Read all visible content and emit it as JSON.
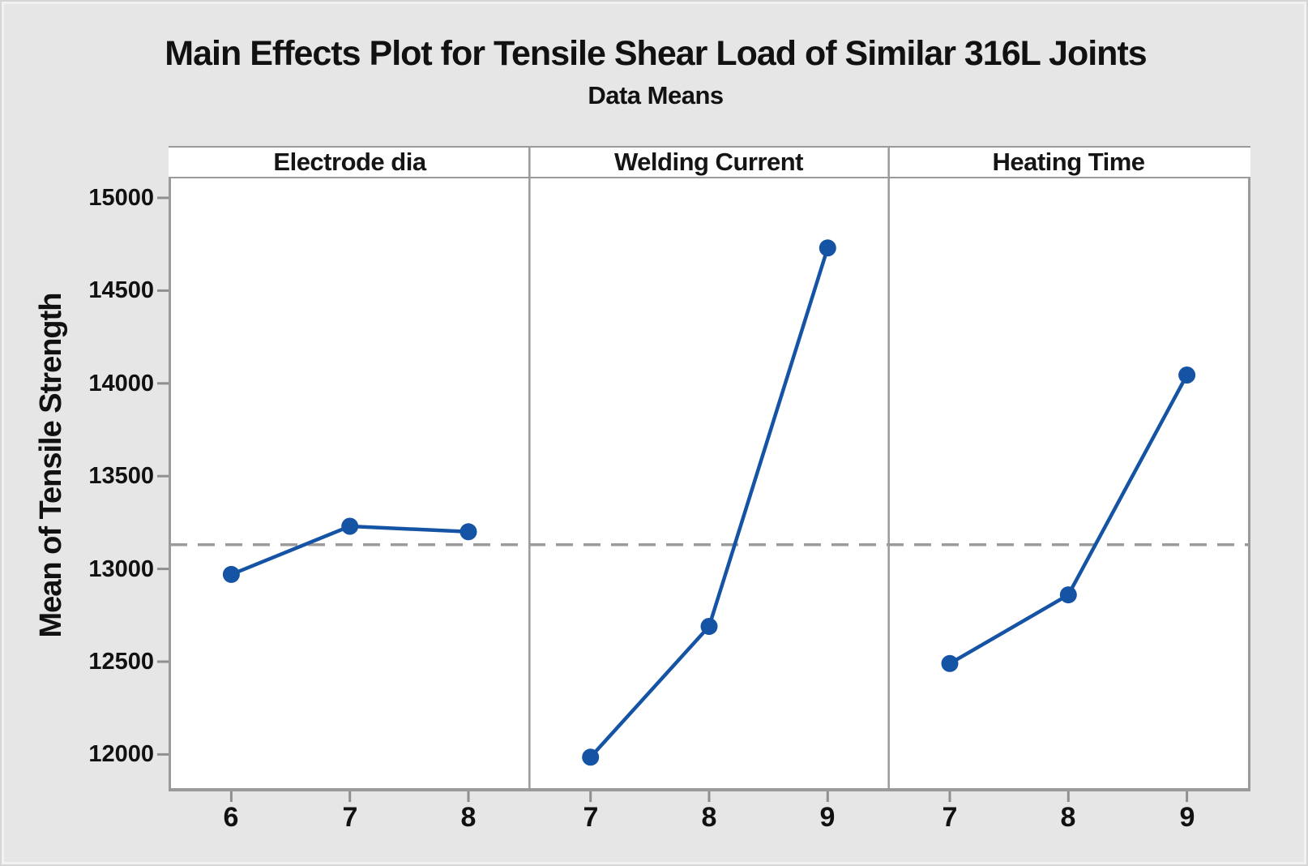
{
  "chart_data": {
    "type": "line",
    "variant": "main-effects-plot",
    "title": "Main Effects Plot for Tensile Shear Load of Similar 316L Joints",
    "subtitle": "Data Means",
    "ylabel": "Mean of Tensile Strength",
    "xlabel": "",
    "legend": "none",
    "grid": false,
    "yticks": [
      12000,
      12500,
      13000,
      13500,
      14000,
      14500,
      15000
    ],
    "ylim": [
      11818,
      15105
    ],
    "reference_mean": 13130,
    "marker": "circle",
    "panels": [
      {
        "label": "Electrode dia",
        "x": [
          "6",
          "7",
          "8"
        ],
        "values": [
          12970,
          13230,
          13200
        ]
      },
      {
        "label": "Welding Current",
        "x": [
          "7",
          "8",
          "9"
        ],
        "values": [
          11985,
          12690,
          14730
        ]
      },
      {
        "label": "Heating Time",
        "x": [
          "7",
          "8",
          "9"
        ],
        "values": [
          12490,
          12860,
          14045
        ]
      }
    ],
    "colors": {
      "line": "#1553a4",
      "marker": "#1553a4",
      "reference_line": "#9b9b9b",
      "frame": "#9a9a9a",
      "tick": "#8f8f8f",
      "background": "#e6e6e6",
      "plot_background": "#ffffff",
      "text": "#111111"
    }
  }
}
